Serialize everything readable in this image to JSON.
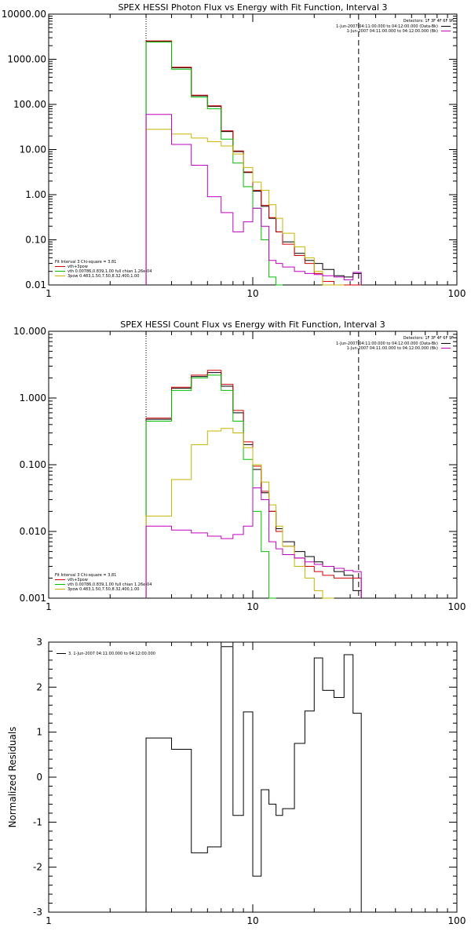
{
  "chart_data": [
    {
      "type": "line",
      "title": "SPEX HESSI Photon Flux vs Energy with Fit Function, Interval 3",
      "xscale": "log",
      "yscale": "log",
      "xlim": [
        1,
        100
      ],
      "ylim": [
        0.01,
        10000
      ],
      "x_ticks": [
        "1",
        "10",
        "100"
      ],
      "y_ticks": [
        "0.01",
        "0.10",
        "1.00",
        "10.00",
        "100.00",
        "1000.00",
        "10000.00"
      ],
      "vlines": [
        3,
        33
      ],
      "detectors_label": "Detectors: 1F 3F 4F 6F 9F",
      "time_labels": [
        {
          "text": "1-Jun-2007 04:11:00.000 to 04:12:00.000 (Data-Bk)",
          "color": "#000000"
        },
        {
          "text": "1-Jun-2007 04:11:00.000 to 04:12:00.000 (Bk)",
          "color": "#c000c0"
        }
      ],
      "fit_lines": [
        {
          "text": "Fit Interval 3   Chi-square = 3.81",
          "color": "#000000"
        },
        {
          "text": "vth+3pow",
          "color": "#d00000"
        },
        {
          "text": "vth 0.00786,0.839,1.00   full chian 1.26e-04",
          "color": "#00c000"
        },
        {
          "text": "3pow 0.483,1.50,7.50,8.32,400,1.00",
          "color": "#c8b400"
        }
      ],
      "edges": [
        3,
        4,
        5,
        6,
        7,
        8,
        9,
        10,
        11,
        12,
        13,
        14,
        16,
        18,
        20,
        22,
        25,
        28,
        31,
        34
      ],
      "series": [
        {
          "color": "#000000",
          "values": [
            2500,
            650,
            155,
            90,
            25,
            9,
            3.1,
            1.2,
            0.55,
            0.3,
            0.15,
            0.09,
            0.05,
            0.035,
            0.03,
            0.022,
            0.016,
            0.015,
            0.018
          ]
        },
        {
          "color": "#d00000",
          "values": [
            2550,
            670,
            160,
            93,
            26,
            9.3,
            3.2,
            1.25,
            0.58,
            0.31,
            0.15,
            0.08,
            0.045,
            0.03,
            0.018,
            0.012,
            0.0095,
            0.008,
            0.007
          ]
        },
        {
          "color": "#00c000",
          "values": [
            2400,
            600,
            145,
            80,
            17,
            5,
            1.5,
            0.5,
            0.1,
            0.015,
            0.005
          ]
        },
        {
          "color": "#c8b400",
          "values": [
            28,
            22,
            18,
            15,
            12,
            8,
            4,
            1.9,
            1.25,
            0.6,
            0.3,
            0.14,
            0.07,
            0.04,
            0.02,
            0.01,
            0.005
          ]
        },
        {
          "color": "#c000c0",
          "values": [
            60,
            13,
            4.5,
            0.9,
            0.4,
            0.15,
            0.25,
            0.5,
            0.2,
            0.035,
            0.03,
            0.025,
            0.02,
            0.018,
            0.017,
            0.016,
            0.015,
            0.013,
            0.019
          ]
        }
      ]
    },
    {
      "type": "line",
      "title": "SPEX HESSI Count Flux vs Energy with Fit Function, Interval 3",
      "xscale": "log",
      "yscale": "log",
      "xlim": [
        1,
        100
      ],
      "ylim": [
        0.001,
        10
      ],
      "x_ticks": [
        "1",
        "10",
        "100"
      ],
      "y_ticks": [
        "0.001",
        "0.010",
        "0.100",
        "1.000",
        "10.000"
      ],
      "vlines": [
        3,
        33
      ],
      "detectors_label": "Detectors: 1F 3F 4F 6F 9F",
      "time_labels": [
        {
          "text": "1-Jun-2007 04:11:00.000 to 04:12:00.000 (Data-Bk)",
          "color": "#000000"
        },
        {
          "text": "1-Jun-2007 04:11:00.000 to 04:12:00.000 (Bk)",
          "color": "#c000c0"
        }
      ],
      "fit_lines": [
        {
          "text": "Fit Interval 3   Chi-square = 3.81",
          "color": "#000000"
        },
        {
          "text": "vth+3pow",
          "color": "#d00000"
        },
        {
          "text": "vth 0.00786,0.839,1.00   full chian 1.26e-04",
          "color": "#00c000"
        },
        {
          "text": "3pow 0.483,1.50,7.50,8.32,400,1.00",
          "color": "#c8b400"
        }
      ],
      "edges": [
        3,
        4,
        5,
        6,
        7,
        8,
        9,
        10,
        11,
        12,
        13,
        14,
        16,
        18,
        20,
        22,
        25,
        28,
        31,
        34
      ],
      "series": [
        {
          "color": "#000000",
          "values": [
            0.48,
            1.4,
            2.1,
            2.4,
            1.5,
            0.6,
            0.2,
            0.085,
            0.038,
            0.02,
            0.011,
            0.007,
            0.005,
            0.0042,
            0.0035,
            0.003,
            0.0025,
            0.0022,
            0.0013
          ]
        },
        {
          "color": "#d00000",
          "values": [
            0.5,
            1.45,
            2.2,
            2.6,
            1.6,
            0.65,
            0.22,
            0.095,
            0.04,
            0.02,
            0.01,
            0.006,
            0.004,
            0.003,
            0.0025,
            0.0022,
            0.002,
            0.002,
            0.002
          ]
        },
        {
          "color": "#00c000",
          "values": [
            0.45,
            1.3,
            2.0,
            2.2,
            1.3,
            0.45,
            0.12,
            0.02,
            0.005,
            0.001
          ]
        },
        {
          "color": "#c8b400",
          "values": [
            0.017,
            0.06,
            0.2,
            0.32,
            0.35,
            0.3,
            0.18,
            0.1,
            0.055,
            0.025,
            0.012,
            0.006,
            0.003,
            0.002,
            0.0013,
            0.001
          ]
        },
        {
          "color": "#c000c0",
          "values": [
            0.012,
            0.0105,
            0.0095,
            0.0085,
            0.0078,
            0.009,
            0.012,
            0.045,
            0.03,
            0.007,
            0.0055,
            0.0045,
            0.004,
            0.0035,
            0.0032,
            0.003,
            0.0028,
            0.0026,
            0.0025
          ]
        }
      ]
    },
    {
      "type": "line",
      "title": "",
      "ylabel": "Normalized Residuals",
      "xscale": "log",
      "yscale": "linear",
      "xlim": [
        1,
        100
      ],
      "ylim": [
        -3,
        3
      ],
      "x_ticks": [
        "1",
        "10",
        "100"
      ],
      "y_ticks": [
        "-3",
        "-2",
        "-1",
        "0",
        "1",
        "2",
        "3"
      ],
      "legend": "3. 1-Jun-2007 04:11:00.000 to 04:12:00.000",
      "edges": [
        3,
        4,
        5,
        6,
        7,
        8,
        9,
        10,
        11,
        12,
        13,
        14,
        16,
        18,
        20,
        22,
        25,
        28,
        31,
        34
      ],
      "values": [
        0.87,
        0.62,
        -1.68,
        -1.55,
        2.9,
        -0.85,
        1.45,
        -2.2,
        -0.28,
        -0.6,
        -0.85,
        -0.7,
        0.75,
        1.47,
        2.65,
        1.93,
        1.77,
        2.72,
        1.42
      ]
    }
  ]
}
